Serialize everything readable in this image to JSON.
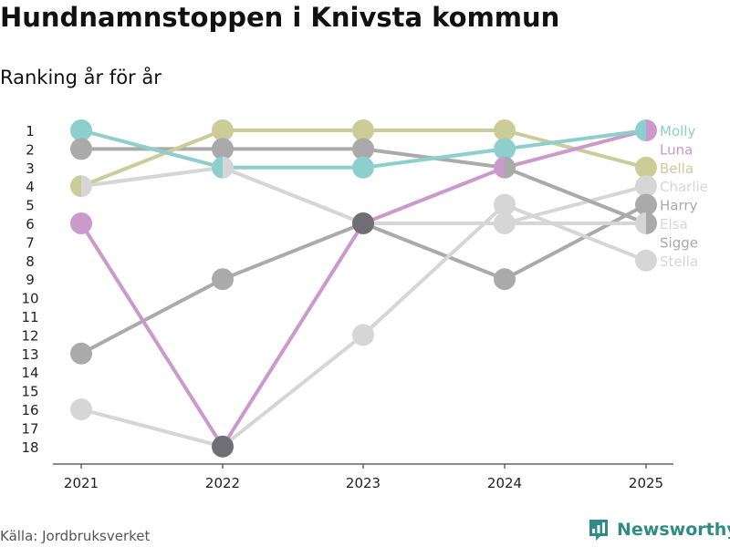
{
  "title": "Hundnamnstoppen i Knivsta kommun",
  "subtitle": "Ranking år för år",
  "source": "Källa: Jordbruksverket",
  "brand": "Newsworthy",
  "colors": {
    "teal": "#8ccfcc",
    "olive": "#cccc99",
    "purple": "#cc99cc",
    "darkgray": "#aaaaaa",
    "lightgray": "#d6d6d6",
    "dark": "#6e6e74",
    "axis": "#444444",
    "brand": "#2f8b85"
  },
  "chart_data": {
    "type": "line",
    "title": "Hundnamnstoppen i Knivsta kommun",
    "subtitle": "Ranking år för år",
    "x": [
      "2021",
      "2022",
      "2023",
      "2024",
      "2025"
    ],
    "y_ticks": [
      1,
      2,
      3,
      4,
      5,
      6,
      7,
      8,
      9,
      10,
      11,
      12,
      13,
      14,
      15,
      16,
      17,
      18
    ],
    "ylim": [
      1,
      18
    ],
    "y_inverted": true,
    "series": [
      {
        "name": "Sigge",
        "color": "#aaaaaa",
        "values": [
          13,
          9,
          6,
          9,
          5
        ]
      },
      {
        "name": "Stella",
        "color": "#d6d6d6",
        "values": [
          16,
          18,
          12,
          5,
          8
        ]
      },
      {
        "name": "Elsa",
        "color": "#d6d6d6",
        "values": [
          4,
          3,
          6,
          6,
          6
        ]
      },
      {
        "name": "Charlie",
        "color": "#d6d6d6",
        "values": [
          4,
          3,
          6,
          6,
          4
        ]
      },
      {
        "name": "Harry",
        "color": "#aaaaaa",
        "values": [
          2,
          2,
          2,
          3,
          6
        ]
      },
      {
        "name": "Bella",
        "color": "#cccc99",
        "values": [
          4,
          1,
          1,
          1,
          3
        ]
      },
      {
        "name": "Luna",
        "color": "#cc99cc",
        "values": [
          6,
          18,
          6,
          3,
          1
        ]
      },
      {
        "name": "Molly",
        "color": "#8ccfcc",
        "values": [
          1,
          3,
          3,
          2,
          1
        ]
      }
    ],
    "end_labels": [
      {
        "name": "Molly",
        "rank": 1,
        "color": "#8ccfcc"
      },
      {
        "name": "Luna",
        "rank": 2,
        "color": "#cc99cc"
      },
      {
        "name": "Bella",
        "rank": 3,
        "color": "#cccc99"
      },
      {
        "name": "Charlie",
        "rank": 4,
        "color": "#d6d6d6"
      },
      {
        "name": "Harry",
        "rank": 5,
        "color": "#aaaaaa"
      },
      {
        "name": "Elsa",
        "rank": 6,
        "color": "#d6d6d6"
      },
      {
        "name": "Sigge",
        "rank": 7,
        "color": "#aaaaaa"
      },
      {
        "name": "Stella",
        "rank": 8,
        "color": "#d6d6d6"
      }
    ],
    "markers": [
      {
        "x": 0,
        "rank": 1,
        "colors": [
          "#8ccfcc"
        ]
      },
      {
        "x": 0,
        "rank": 2,
        "colors": [
          "#aaaaaa"
        ]
      },
      {
        "x": 0,
        "rank": 4,
        "colors": [
          "#cccc99",
          "#d6d6d6"
        ]
      },
      {
        "x": 0,
        "rank": 6,
        "colors": [
          "#cc99cc"
        ]
      },
      {
        "x": 0,
        "rank": 13,
        "colors": [
          "#aaaaaa"
        ]
      },
      {
        "x": 0,
        "rank": 16,
        "colors": [
          "#d6d6d6"
        ]
      },
      {
        "x": 1,
        "rank": 1,
        "colors": [
          "#cccc99"
        ]
      },
      {
        "x": 1,
        "rank": 2,
        "colors": [
          "#aaaaaa"
        ]
      },
      {
        "x": 1,
        "rank": 3,
        "colors": [
          "#8ccfcc",
          "#d6d6d6"
        ]
      },
      {
        "x": 1,
        "rank": 9,
        "colors": [
          "#aaaaaa"
        ]
      },
      {
        "x": 1,
        "rank": 18,
        "colors": [
          "#6e6e74"
        ]
      },
      {
        "x": 2,
        "rank": 1,
        "colors": [
          "#cccc99"
        ]
      },
      {
        "x": 2,
        "rank": 2,
        "colors": [
          "#aaaaaa"
        ]
      },
      {
        "x": 2,
        "rank": 3,
        "colors": [
          "#8ccfcc"
        ]
      },
      {
        "x": 2,
        "rank": 6,
        "colors": [
          "#6e6e74"
        ]
      },
      {
        "x": 2,
        "rank": 12,
        "colors": [
          "#d6d6d6"
        ]
      },
      {
        "x": 3,
        "rank": 1,
        "colors": [
          "#cccc99"
        ]
      },
      {
        "x": 3,
        "rank": 2,
        "colors": [
          "#8ccfcc"
        ]
      },
      {
        "x": 3,
        "rank": 3,
        "colors": [
          "#cc99cc",
          "#aaaaaa"
        ]
      },
      {
        "x": 3,
        "rank": 5,
        "colors": [
          "#d6d6d6"
        ]
      },
      {
        "x": 3,
        "rank": 6,
        "colors": [
          "#d6d6d6"
        ]
      },
      {
        "x": 3,
        "rank": 9,
        "colors": [
          "#aaaaaa"
        ]
      },
      {
        "x": 4,
        "rank": 1,
        "colors": [
          "#8ccfcc",
          "#cc99cc"
        ]
      },
      {
        "x": 4,
        "rank": 3,
        "colors": [
          "#cccc99"
        ]
      },
      {
        "x": 4,
        "rank": 4,
        "colors": [
          "#d6d6d6"
        ]
      },
      {
        "x": 4,
        "rank": 5,
        "colors": [
          "#aaaaaa"
        ]
      },
      {
        "x": 4,
        "rank": 6,
        "colors": [
          "#d6d6d6",
          "#aaaaaa"
        ]
      },
      {
        "x": 4,
        "rank": 8,
        "colors": [
          "#d6d6d6"
        ]
      }
    ]
  }
}
